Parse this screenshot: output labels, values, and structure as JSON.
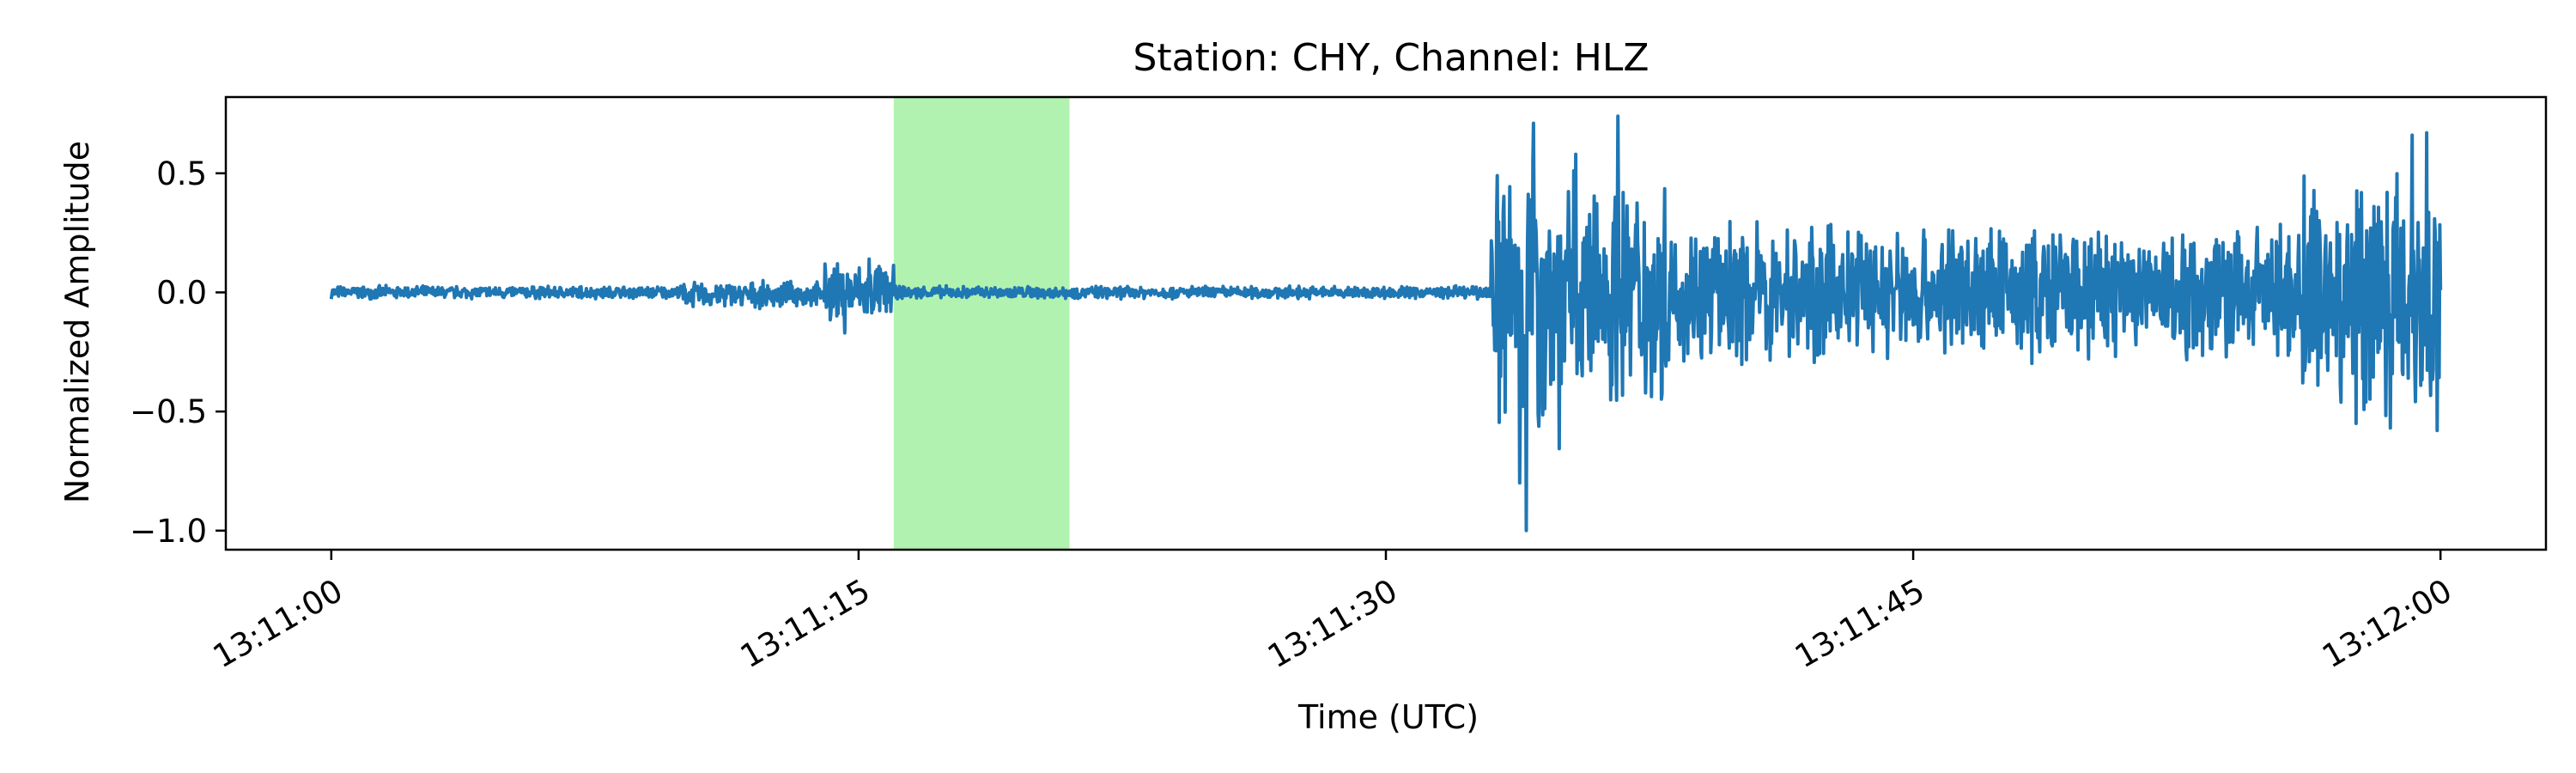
{
  "chart_data": {
    "type": "line",
    "title": "Station: CHY, Channel: HLZ",
    "xlabel": "Time (UTC)",
    "ylabel": "Normalized Amplitude",
    "x_ticks": [
      "13:11:00",
      "13:11:15",
      "13:11:30",
      "13:11:45",
      "13:12:00"
    ],
    "x_range": [
      "13:11:00",
      "13:12:00"
    ],
    "xlim": [
      "13:10:57",
      "13:12:03"
    ],
    "ylim": [
      -1.08,
      0.82
    ],
    "y_ticks": [
      0.5,
      0.0,
      -0.5,
      -1.0
    ],
    "y_tick_labels": [
      "0.5",
      "0.0",
      "−0.5",
      "−1.0"
    ],
    "highlight_span": {
      "start": "13:11:16",
      "end": "13:11:21",
      "color": "#b2f2b0"
    },
    "series": [
      {
        "color": "#1f77b4",
        "segments": [
          {
            "start": "13:11:00",
            "end": "13:11:10",
            "envelope": 0.03,
            "offset": 0.0
          },
          {
            "start": "13:11:10",
            "end": "13:11:14",
            "envelope": 0.06,
            "offset": -0.01
          },
          {
            "start": "13:11:14",
            "end": "13:11:16",
            "envelope": 0.14,
            "offset": 0.0
          },
          {
            "start": "13:11:16",
            "end": "13:11:33",
            "envelope": 0.03,
            "offset": 0.0
          },
          {
            "start": "13:11:33",
            "end": "13:11:35",
            "envelope": 0.7,
            "offset": 0.0
          },
          {
            "start": "13:11:35",
            "end": "13:11:38",
            "envelope": 0.55,
            "offset": 0.0
          },
          {
            "start": "13:11:38",
            "end": "13:11:56",
            "envelope": 0.32,
            "offset": 0.0
          },
          {
            "start": "13:11:56",
            "end": "13:12:00",
            "envelope": 0.6,
            "offset": 0.0
          }
        ],
        "peaks": [
          {
            "t": "13:11:34.0",
            "value": -1.0
          },
          {
            "t": "13:11:33.8",
            "value": -0.8
          },
          {
            "t": "13:11:34.2",
            "value": 0.71
          },
          {
            "t": "13:11:36.6",
            "value": 0.74
          },
          {
            "t": "13:11:35.4",
            "value": 0.58
          },
          {
            "t": "13:11:59.6",
            "value": 0.67
          },
          {
            "t": "13:11:59.2",
            "value": 0.66
          },
          {
            "t": "13:11:59.9",
            "value": -0.58
          },
          {
            "t": "13:11:57.6",
            "value": -0.55
          },
          {
            "t": "13:11:15.3",
            "value": 0.14
          },
          {
            "t": "13:11:14.6",
            "value": -0.17
          }
        ]
      }
    ]
  }
}
